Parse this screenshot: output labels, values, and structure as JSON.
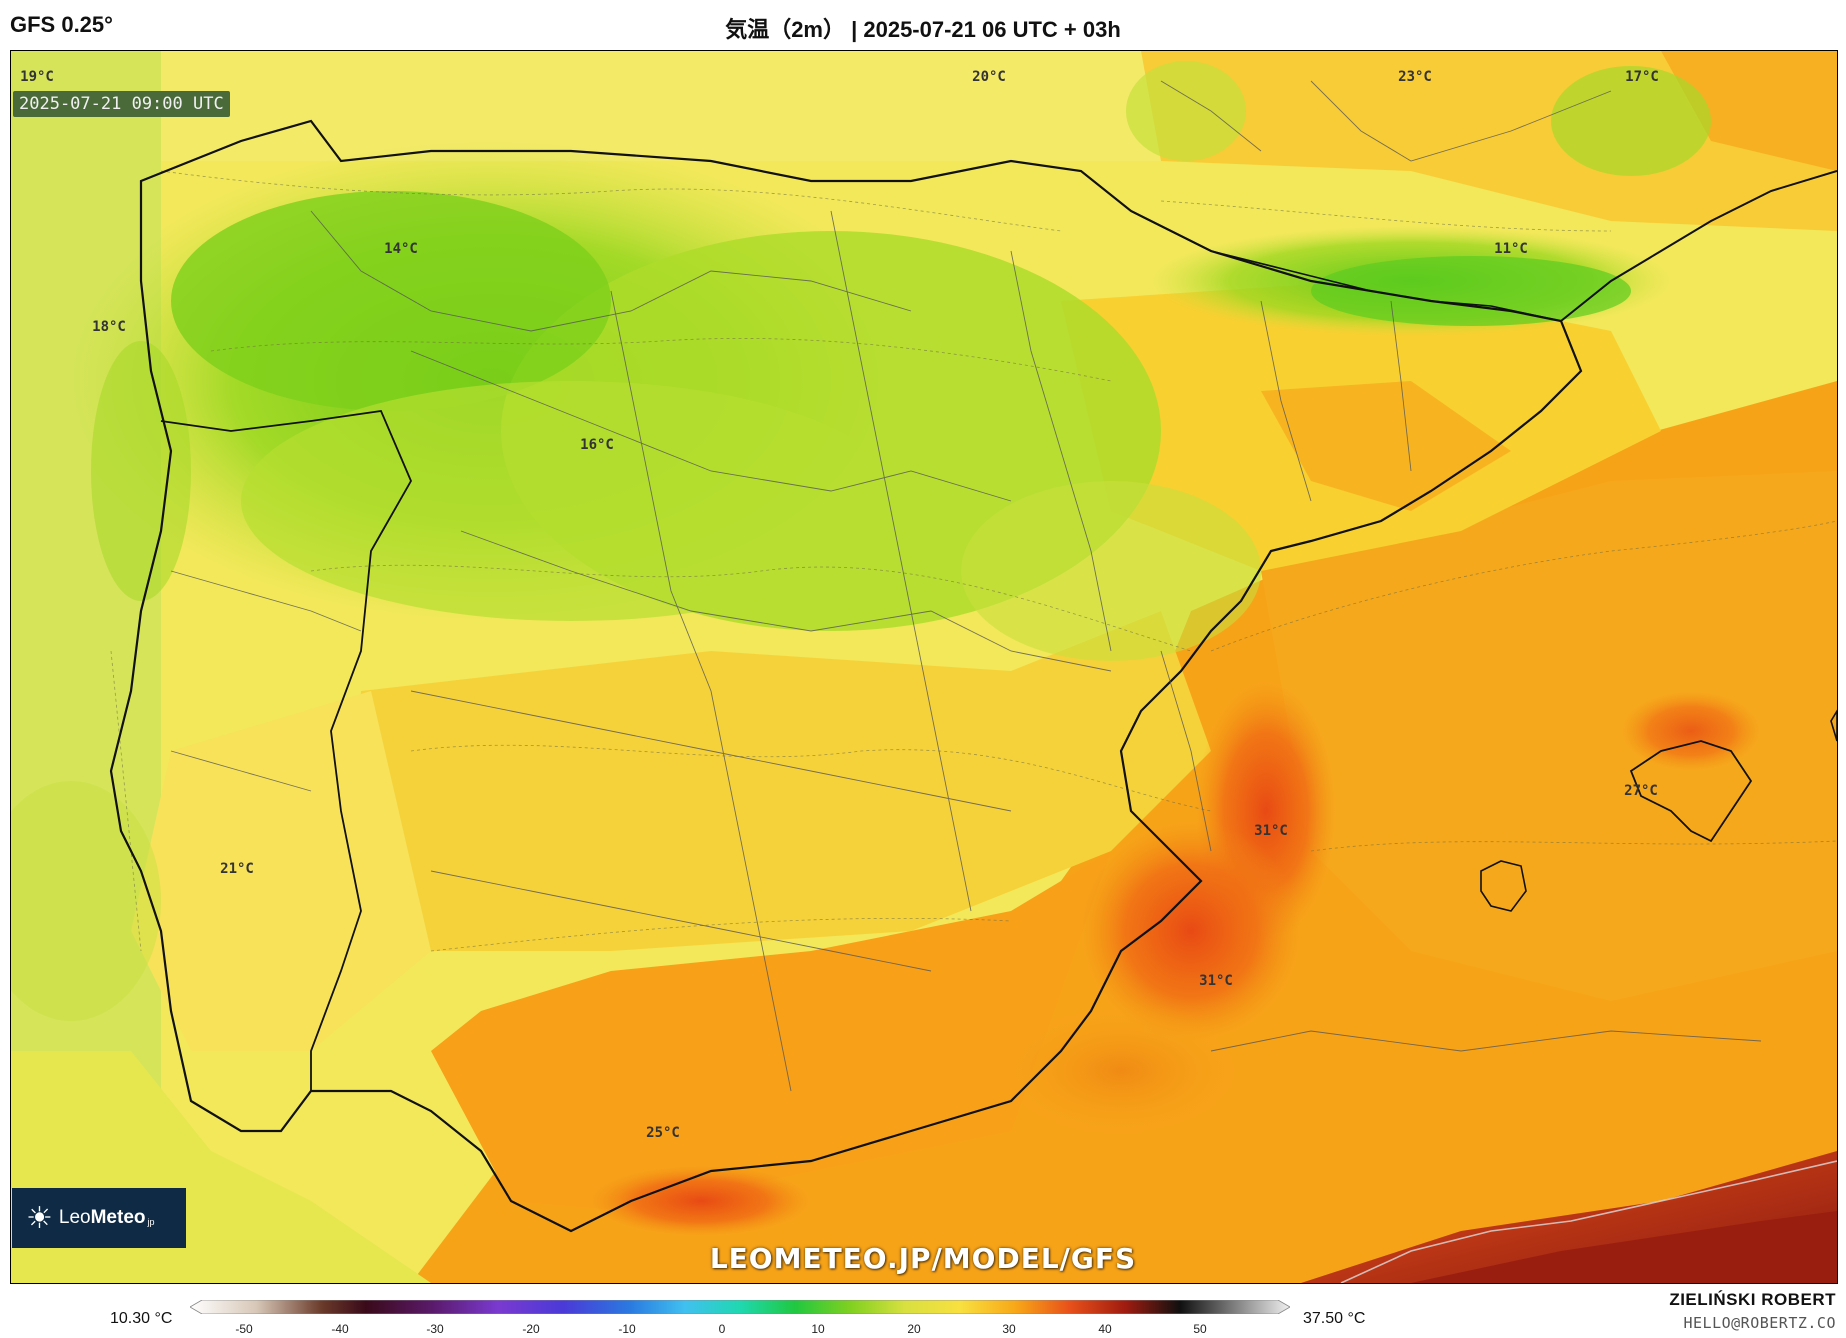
{
  "header": {
    "model": "GFS 0.25°",
    "title": "気温（2m） | 2025-07-21 06 UTC + 03h"
  },
  "map": {
    "valid_time": "2025-07-21 09:00 UTC",
    "temperature_labels": [
      {
        "text": "19°C"
      },
      {
        "text": "20°C"
      },
      {
        "text": "23°C"
      },
      {
        "text": "17°C"
      },
      {
        "text": "14°C"
      },
      {
        "text": "11°C"
      },
      {
        "text": "18°C"
      },
      {
        "text": "16°C"
      },
      {
        "text": "27°C"
      },
      {
        "text": "31°C"
      },
      {
        "text": "21°C"
      },
      {
        "text": "31°C"
      },
      {
        "text": "25°C"
      }
    ],
    "colors": {
      "cold_green": "#7fd01a",
      "mid_green": "#b5e02a",
      "light_yellow": "#f4ef6a",
      "yellow": "#f8d83a",
      "orange": "#f7a318",
      "deep_orange": "#f07a10",
      "red_orange": "#e8501a",
      "dark_red": "#a01c10"
    }
  },
  "logo": {
    "brand_light": "Leo",
    "brand_bold": "Meteo",
    "suffix": "jp"
  },
  "watermark": "LEOMETEO.JP/MODEL/GFS",
  "legend": {
    "min_label": "10.30 °C",
    "max_label": "37.50 °C",
    "ticks": [
      "-50",
      "-40",
      "-30",
      "-20",
      "-10",
      "0",
      "10",
      "20",
      "30",
      "40",
      "50"
    ]
  },
  "author": {
    "name": "ZIELIŃSKI ROBERT",
    "email": "HELLO@ROBERTZ.CO"
  }
}
